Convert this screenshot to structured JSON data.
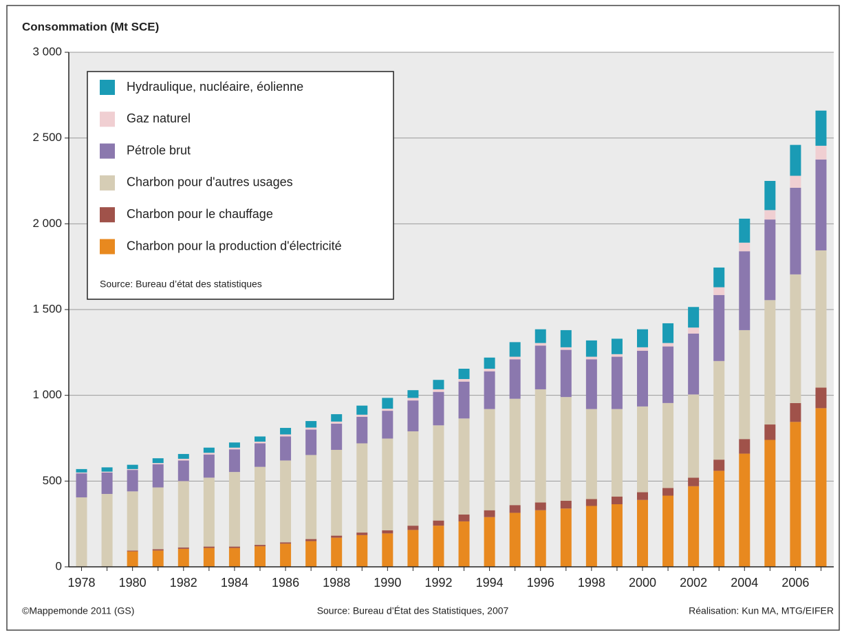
{
  "chart_data": {
    "type": "stacked_bar",
    "title": "Consommation (Mt SCE)",
    "categories": [
      "1978",
      null,
      "1980",
      null,
      "1982",
      null,
      "1984",
      null,
      "1986",
      null,
      "1988",
      null,
      "1990",
      null,
      "1992",
      null,
      "1994",
      null,
      "1996",
      null,
      "1998",
      null,
      "2000",
      null,
      "2002",
      null,
      "2004",
      null,
      "2006",
      null
    ],
    "series": [
      {
        "name": "Charbon pour la production d'électricité",
        "color": "#e8891f",
        "values": [
          0,
          0,
          90,
          95,
          105,
          110,
          110,
          120,
          135,
          150,
          170,
          185,
          195,
          215,
          240,
          265,
          290,
          315,
          330,
          340,
          355,
          365,
          390,
          415,
          470,
          560,
          660,
          740,
          845,
          925
        ]
      },
      {
        "name": "Charbon pour le chauffage",
        "color": "#a0524a",
        "values": [
          0,
          0,
          5,
          8,
          8,
          8,
          8,
          8,
          8,
          12,
          12,
          15,
          18,
          25,
          30,
          40,
          40,
          45,
          45,
          45,
          40,
          45,
          45,
          45,
          50,
          65,
          85,
          90,
          110,
          120
        ]
      },
      {
        "name": "Charbon pour d'autres usages",
        "color": "#d6cdb5",
        "values": [
          405,
          425,
          345,
          360,
          387,
          402,
          435,
          455,
          477,
          490,
          500,
          520,
          535,
          550,
          555,
          560,
          590,
          620,
          660,
          605,
          525,
          510,
          500,
          495,
          485,
          575,
          635,
          725,
          750,
          800
        ]
      },
      {
        "name": "Pétrole brut",
        "color": "#8b78ae",
        "values": [
          140,
          125,
          125,
          135,
          120,
          135,
          132,
          137,
          140,
          148,
          153,
          155,
          162,
          180,
          195,
          215,
          220,
          230,
          255,
          275,
          290,
          305,
          325,
          330,
          355,
          385,
          460,
          470,
          505,
          530
        ]
      },
      {
        "name": "Gaz naturel",
        "color": "#f0cfd2",
        "values": [
          5,
          5,
          5,
          7,
          10,
          10,
          10,
          10,
          12,
          12,
          12,
          12,
          12,
          15,
          15,
          15,
          15,
          15,
          15,
          15,
          15,
          15,
          20,
          20,
          35,
          45,
          50,
          55,
          70,
          80
        ]
      },
      {
        "name": "Hydraulique, nucléaire, éolienne",
        "color": "#1a9bb5",
        "values": [
          20,
          25,
          25,
          28,
          28,
          30,
          30,
          30,
          38,
          38,
          43,
          53,
          63,
          45,
          55,
          60,
          65,
          85,
          80,
          100,
          95,
          90,
          105,
          115,
          120,
          115,
          140,
          170,
          180,
          205
        ]
      }
    ],
    "ylim": [
      0,
      3000
    ],
    "yticks": [
      0,
      500,
      {
        "value": 1000,
        "label": "1 000"
      },
      {
        "value": 1500,
        "label": "1 500"
      },
      {
        "value": 2000,
        "label": "2 000"
      },
      {
        "value": 2500,
        "label": "2 500"
      },
      {
        "value": 3000,
        "label": "3 000"
      }
    ],
    "grid": true,
    "legend_note": "Source: Bureau d’état des statistiques",
    "footer": [
      "©Mappemonde 2011 (GS)",
      "Source: Bureau d’État des Statistiques, 2007",
      "Réalisation: Kun MA, MTG/EIFER"
    ]
  }
}
